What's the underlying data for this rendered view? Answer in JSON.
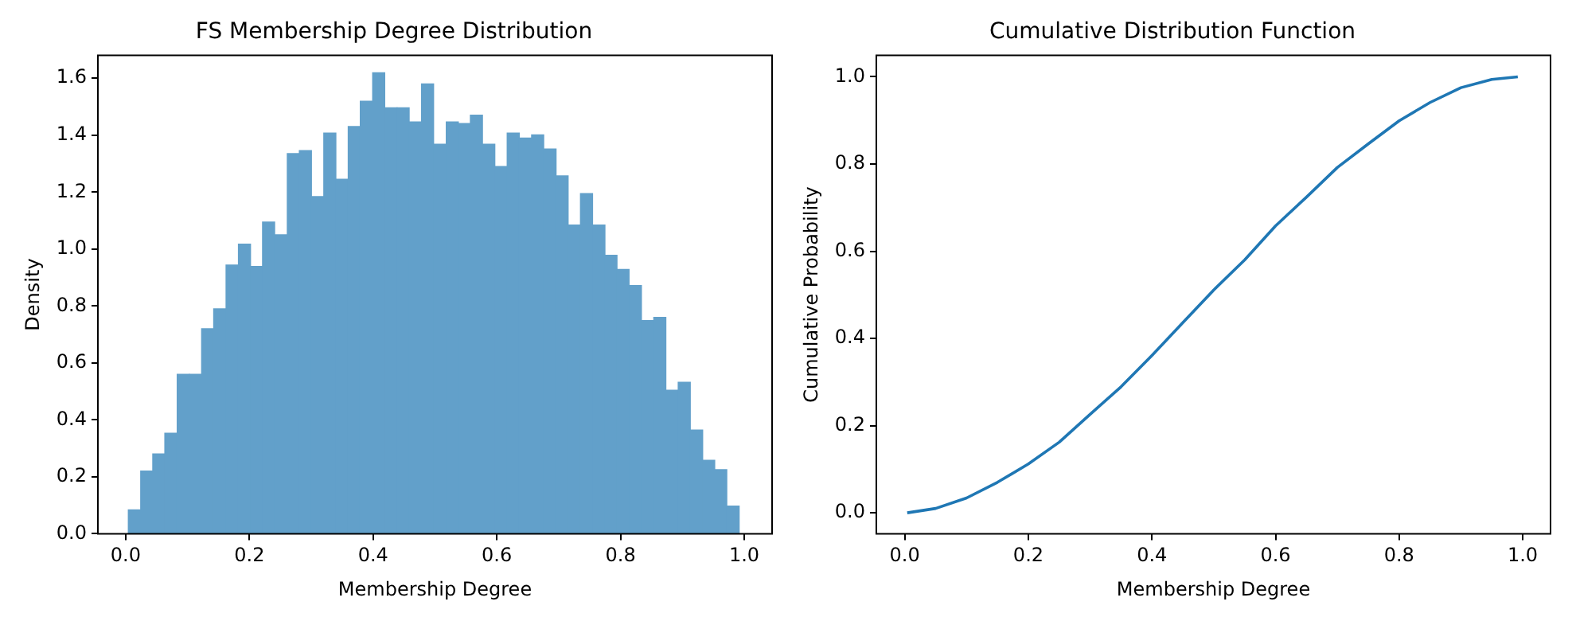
{
  "chart_data": [
    {
      "type": "histogram",
      "title": "FS Membership Degree Distribution",
      "xlabel": "Membership Degree",
      "ylabel": "Density",
      "color": "#62a0ca",
      "grid": false,
      "bins": [
        0.004,
        0.024,
        0.044,
        0.063,
        0.083,
        0.103,
        0.123,
        0.142,
        0.162,
        0.182,
        0.202,
        0.221,
        0.241,
        0.261,
        0.281,
        0.3,
        0.32,
        0.34,
        0.36,
        0.379,
        0.399,
        0.419,
        0.439,
        0.458,
        0.478,
        0.498,
        0.518,
        0.538,
        0.557,
        0.577,
        0.597,
        0.617,
        0.636,
        0.656,
        0.676,
        0.696,
        0.715,
        0.735,
        0.755,
        0.775,
        0.794,
        0.814,
        0.834,
        0.854,
        0.873,
        0.893,
        0.913,
        0.933,
        0.952,
        0.972,
        0.992
      ],
      "values": [
        0.084,
        0.22,
        0.28,
        0.353,
        0.56,
        0.56,
        0.72,
        0.79,
        0.944,
        1.017,
        0.939,
        1.095,
        1.05,
        1.335,
        1.346,
        1.184,
        1.407,
        1.245,
        1.43,
        1.519,
        1.619,
        1.496,
        1.496,
        1.446,
        1.58,
        1.368,
        1.446,
        1.441,
        1.47,
        1.368,
        1.29,
        1.407,
        1.39,
        1.401,
        1.351,
        1.257,
        1.084,
        1.195,
        1.084,
        0.978,
        0.928,
        0.872,
        0.749,
        0.76,
        0.504,
        0.532,
        0.364,
        0.258,
        0.225,
        0.097
      ],
      "xlim": [
        -0.045,
        1.045
      ],
      "xticks": [
        {
          "value": 0,
          "label": "0.0"
        },
        {
          "value": 0.2,
          "label": "0.2"
        },
        {
          "value": 0.4,
          "label": "0.4"
        },
        {
          "value": 0.6,
          "label": "0.6"
        },
        {
          "value": 0.8,
          "label": "0.8"
        },
        {
          "value": 1,
          "label": "1.0"
        }
      ],
      "ylim": [
        0,
        1.68
      ],
      "yticks": [
        {
          "value": 0,
          "label": "0.0"
        },
        {
          "value": 0.2,
          "label": "0.2"
        },
        {
          "value": 0.4,
          "label": "0.4"
        },
        {
          "value": 0.6,
          "label": "0.6"
        },
        {
          "value": 0.8,
          "label": "0.8"
        },
        {
          "value": 1,
          "label": "1.0"
        },
        {
          "value": 1.2,
          "label": "1.2"
        },
        {
          "value": 1.4,
          "label": "1.4"
        },
        {
          "value": 1.6,
          "label": "1.6"
        }
      ]
    },
    {
      "type": "line",
      "title": "Cumulative Distribution Function",
      "xlabel": "Membership Degree",
      "ylabel": "Cumulative Probability",
      "color": "#1f77b4",
      "grid": false,
      "marker": "none",
      "x": [
        0.004,
        0.05,
        0.1,
        0.15,
        0.2,
        0.25,
        0.3,
        0.35,
        0.4,
        0.45,
        0.5,
        0.55,
        0.6,
        0.65,
        0.7,
        0.75,
        0.8,
        0.85,
        0.9,
        0.95,
        0.992
      ],
      "values": [
        0.0,
        0.01,
        0.034,
        0.07,
        0.112,
        0.162,
        0.226,
        0.289,
        0.361,
        0.436,
        0.511,
        0.58,
        0.658,
        0.724,
        0.792,
        0.846,
        0.899,
        0.941,
        0.975,
        0.994,
        1.0
      ],
      "xlim": [
        -0.046,
        1.045
      ],
      "xticks": [
        {
          "value": 0,
          "label": "0.0"
        },
        {
          "value": 0.2,
          "label": "0.2"
        },
        {
          "value": 0.4,
          "label": "0.4"
        },
        {
          "value": 0.6,
          "label": "0.6"
        },
        {
          "value": 0.8,
          "label": "0.8"
        },
        {
          "value": 1,
          "label": "1.0"
        }
      ],
      "ylim": [
        -0.048,
        1.049
      ],
      "yticks": [
        {
          "value": 0,
          "label": "0.0"
        },
        {
          "value": 0.2,
          "label": "0.2"
        },
        {
          "value": 0.4,
          "label": "0.4"
        },
        {
          "value": 0.6,
          "label": "0.6"
        },
        {
          "value": 0.8,
          "label": "0.8"
        },
        {
          "value": 1,
          "label": "1.0"
        }
      ]
    }
  ]
}
